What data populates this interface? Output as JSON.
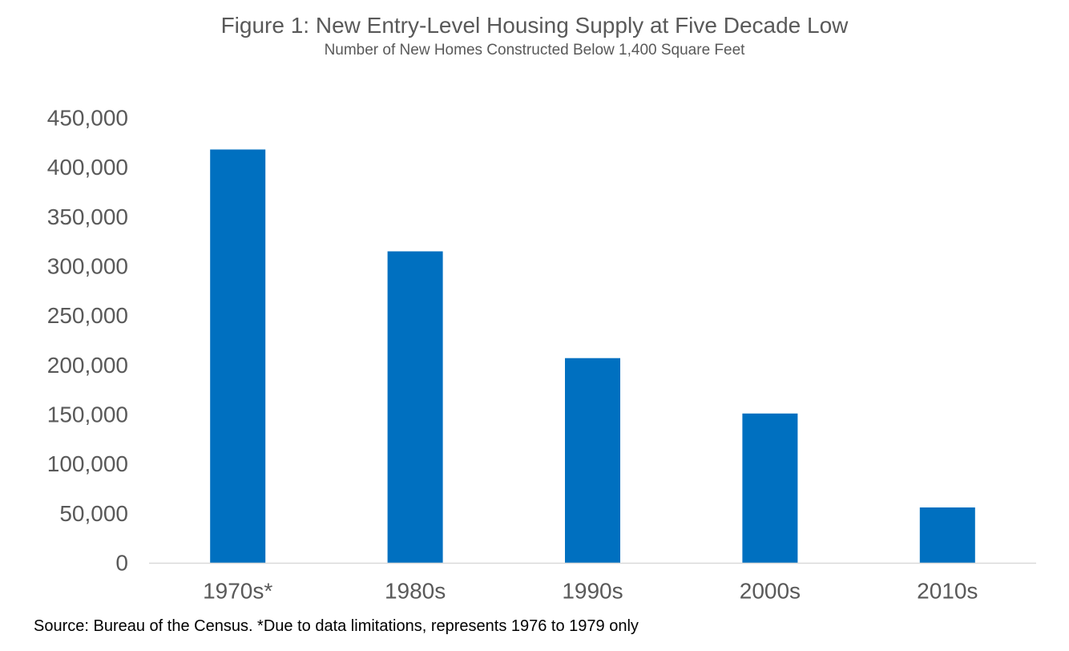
{
  "chart_data": {
    "type": "bar",
    "title": "Figure 1: New Entry-Level Housing Supply at Five Decade Low",
    "subtitle": "Number of New Homes Constructed Below 1,400 Square Feet",
    "categories": [
      "1970s*",
      "1980s",
      "1990s",
      "2000s",
      "2010s"
    ],
    "values": [
      418000,
      315000,
      207000,
      151000,
      56000
    ],
    "ylim": [
      0,
      450000
    ],
    "yticks": [
      0,
      50000,
      100000,
      150000,
      200000,
      250000,
      300000,
      350000,
      400000,
      450000
    ],
    "ytick_labels": [
      "0",
      "50,000",
      "100,000",
      "150,000",
      "200,000",
      "250,000",
      "300,000",
      "350,000",
      "400,000",
      "450,000"
    ],
    "xlabel": "",
    "ylabel": "",
    "grid": false,
    "bar_color": "#0070C0",
    "axis_color": "#D9D9D9",
    "text_color": "#595959"
  },
  "footer": {
    "source_note": "Source: Bureau of the Census. *Due to data limitations, represents 1976 to 1979 only"
  }
}
